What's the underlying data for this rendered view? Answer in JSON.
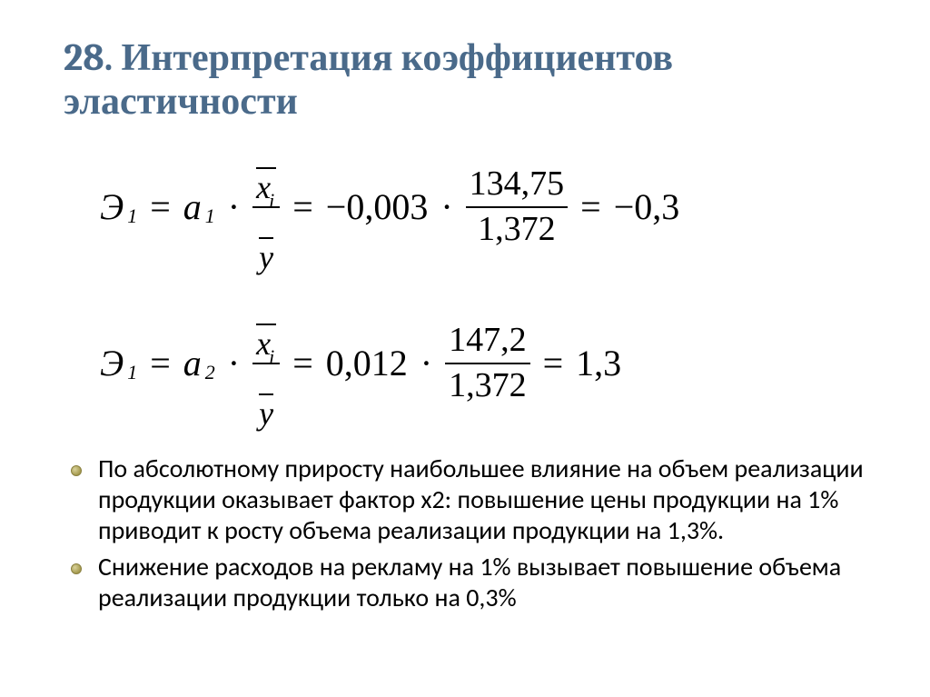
{
  "title_color": "#4a6a8a",
  "bullet_color": "#a59a4e",
  "title": "28. Интерпретация коэффициентов эластичности",
  "formula1": {
    "lhs_symbol": "Э",
    "lhs_sub": "1",
    "coef_symbol": "a",
    "coef_sub": "1",
    "frac_num_var": "x",
    "frac_num_sub": "i",
    "frac_den_var": "y",
    "coef_value": "−0,003",
    "num_value": "134,75",
    "den_value": "1,372",
    "result": "−0,3"
  },
  "formula2": {
    "lhs_symbol": "Э",
    "lhs_sub": "1",
    "coef_symbol": "a",
    "coef_sub": "2",
    "frac_num_var": "x",
    "frac_num_sub": "i",
    "frac_den_var": "y",
    "coef_value": "0,012",
    "num_value": "147,2",
    "den_value": "1,372",
    "result": "1,3"
  },
  "bullet1": "По абсолютному приросту наибольшее влияние на объем реализации продукции оказывает фактор х2: повышение цены продукции на 1% приводит к росту  объема реализации продукции на 1,3%.",
  "bullet2": "Снижение расходов на рекламу на 1% вызывает повышение объема реализации продукции только на 0,3%"
}
